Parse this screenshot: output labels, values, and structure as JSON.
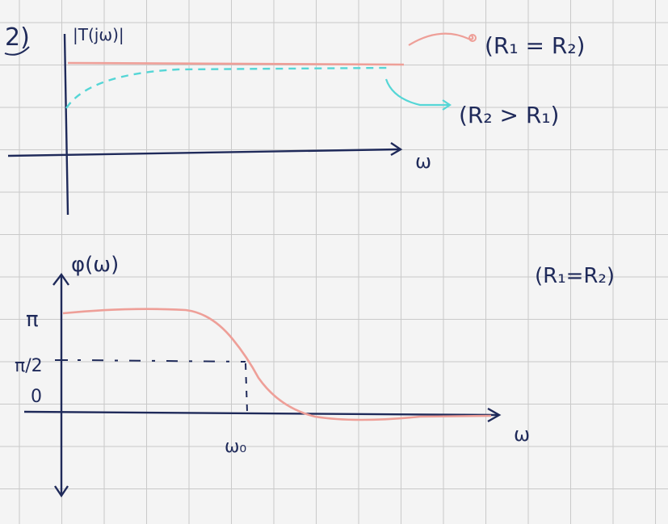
{
  "problem_number": "2)",
  "top_plot": {
    "y_label": "|T(jω)|",
    "x_label": "ω",
    "legend_equal": "(R₁ = R₂)",
    "legend_greater": "(R₂ > R₁)"
  },
  "bottom_plot": {
    "y_label": "φ(ω)",
    "x_label": "ω",
    "condition": "(R₁=R₂)",
    "tick_pi": "π",
    "tick_pi_half": "π/2",
    "tick_zero": "0",
    "marker_label": "ω₀"
  },
  "colors": {
    "grid": "#c9c9c9",
    "ink": "#1f2a5a",
    "red": "#ee9f98",
    "cyan": "#55d6d6"
  }
}
